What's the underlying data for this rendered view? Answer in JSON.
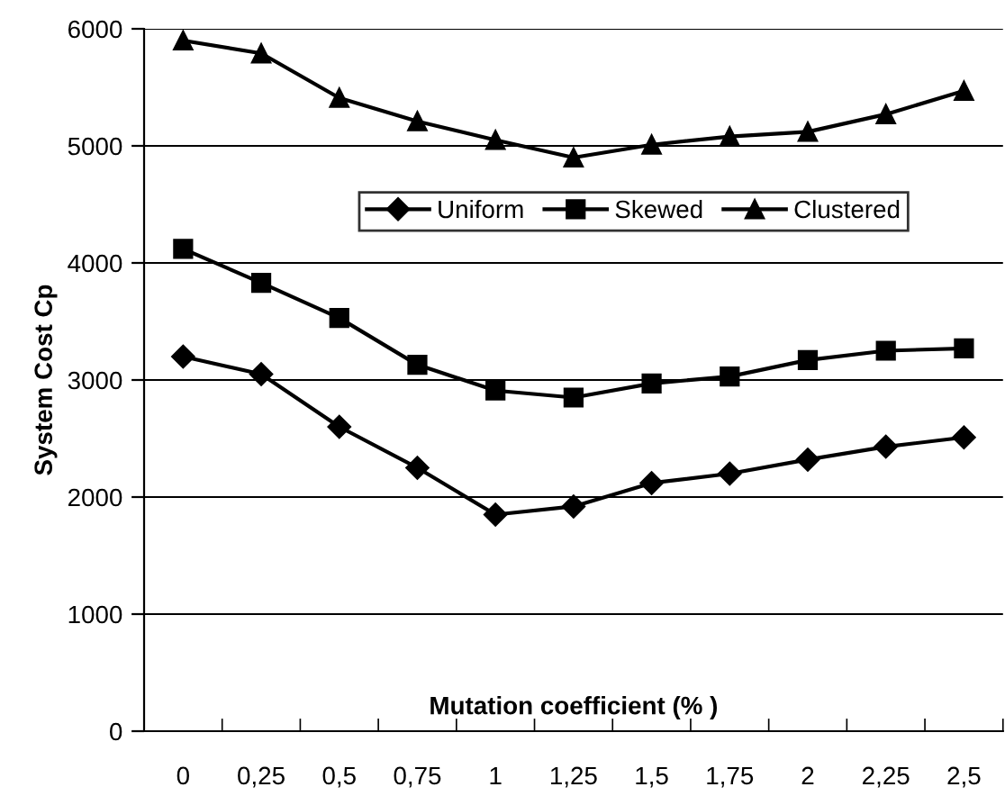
{
  "chart_data": {
    "type": "line",
    "xlabel": "Mutation coefficient (% )",
    "ylabel": "System Cost Cp",
    "categories": [
      "0",
      "0,25",
      "0,5",
      "0,75",
      "1",
      "1,25",
      "1,5",
      "1,75",
      "2",
      "2,25",
      "2,5"
    ],
    "series": [
      {
        "name": "Uniform",
        "color": "#000000",
        "marker": "diamond",
        "values": [
          3200,
          3050,
          2600,
          2250,
          1850,
          1920,
          2120,
          2200,
          2320,
          2430,
          2510
        ]
      },
      {
        "name": "Skewed",
        "color": "#000000",
        "marker": "square",
        "values": [
          4120,
          3830,
          3530,
          3130,
          2910,
          2850,
          2970,
          3030,
          3170,
          3250,
          3270
        ]
      },
      {
        "name": "Clustered",
        "color": "#000000",
        "marker": "triangle",
        "values": [
          5900,
          5790,
          5410,
          5210,
          5050,
          4900,
          5010,
          5080,
          5120,
          5270,
          5470
        ]
      }
    ],
    "ylim": [
      0,
      6000
    ],
    "yticks": [
      0,
      1000,
      2000,
      3000,
      4000,
      5000,
      6000
    ],
    "grid": "y",
    "legend": "top"
  }
}
